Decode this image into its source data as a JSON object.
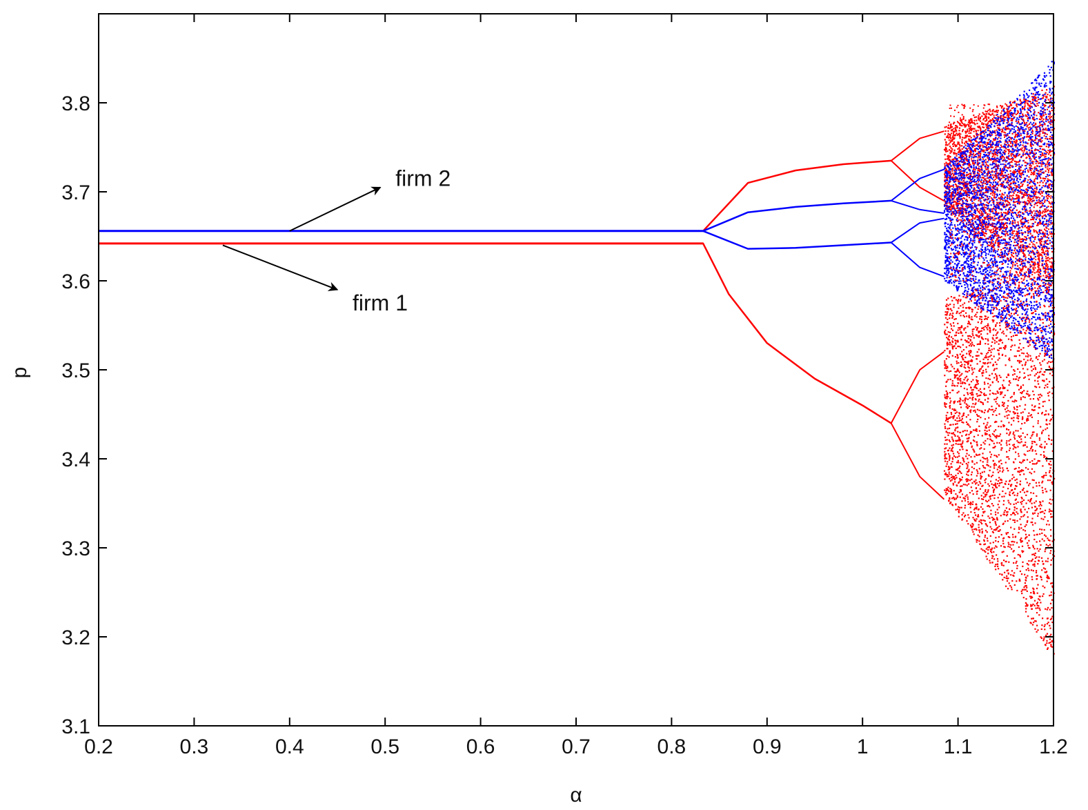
{
  "chart_data": {
    "type": "scatter",
    "title": "",
    "xlabel": "α",
    "ylabel": "p",
    "xlim": [
      0.2,
      1.2
    ],
    "ylim": [
      3.1,
      3.9
    ],
    "x_ticks": [
      "0.2",
      "0.3",
      "0.4",
      "0.5",
      "0.6",
      "0.7",
      "0.8",
      "0.9",
      "1",
      "1.1",
      "1.2"
    ],
    "y_ticks": [
      "3.1",
      "3.2",
      "3.3",
      "3.4",
      "3.5",
      "3.6",
      "3.7",
      "3.8"
    ],
    "grid": false,
    "legend": "none",
    "series": [
      {
        "name": "firm 1",
        "color": "#ff0000",
        "fixed_point": 3.642,
        "first_bifurcation_alpha": 0.833,
        "branches": [
          {
            "x": [
              0.833,
              0.88,
              0.93,
              0.98,
              1.03
            ],
            "y": [
              3.656,
              3.71,
              3.724,
              3.731,
              3.735
            ]
          },
          {
            "x": [
              0.833,
              0.86,
              0.9,
              0.95,
              1.0,
              1.03
            ],
            "y": [
              3.642,
              3.585,
              3.53,
              3.49,
              3.46,
              3.44
            ]
          }
        ],
        "period4_branches": [
          {
            "x": [
              1.03,
              1.06,
              1.085
            ],
            "y": [
              3.735,
              3.76,
              3.768
            ]
          },
          {
            "x": [
              1.03,
              1.06,
              1.085
            ],
            "y": [
              3.735,
              3.705,
              3.69
            ]
          },
          {
            "x": [
              1.03,
              1.06,
              1.085
            ],
            "y": [
              3.44,
              3.5,
              3.52
            ]
          },
          {
            "x": [
              1.03,
              1.06,
              1.085
            ],
            "y": [
              3.44,
              3.38,
              3.355
            ]
          }
        ],
        "chaotic_region": {
          "x_range": [
            1.085,
            1.2
          ],
          "y_range": [
            3.175,
            3.82
          ]
        }
      },
      {
        "name": "firm 2",
        "color": "#0000ff",
        "fixed_point": 3.656,
        "first_bifurcation_alpha": 0.833,
        "branches": [
          {
            "x": [
              0.833,
              0.88,
              0.93,
              0.98,
              1.03
            ],
            "y": [
              3.656,
              3.677,
              3.683,
              3.687,
              3.69
            ]
          },
          {
            "x": [
              0.833,
              0.88,
              0.93,
              0.98,
              1.03
            ],
            "y": [
              3.656,
              3.636,
              3.637,
              3.64,
              3.643
            ]
          }
        ],
        "period4_branches": [
          {
            "x": [
              1.03,
              1.06,
              1.085
            ],
            "y": [
              3.69,
              3.715,
              3.725
            ]
          },
          {
            "x": [
              1.03,
              1.06,
              1.085
            ],
            "y": [
              3.69,
              3.68,
              3.676
            ]
          },
          {
            "x": [
              1.03,
              1.06,
              1.085
            ],
            "y": [
              3.643,
              3.665,
              3.67
            ]
          },
          {
            "x": [
              1.03,
              1.06,
              1.085
            ],
            "y": [
              3.643,
              3.615,
              3.605
            ]
          }
        ],
        "chaotic_region": {
          "x_range": [
            1.085,
            1.2
          ],
          "y_range": [
            3.51,
            3.85
          ]
        }
      }
    ],
    "annotations": [
      {
        "text": "firm 2",
        "arrow_from": [
          0.4,
          3.656
        ],
        "arrow_to": [
          0.495,
          3.705
        ]
      },
      {
        "text": "firm 1",
        "arrow_from": [
          0.33,
          3.64
        ],
        "arrow_to": [
          0.45,
          3.59
        ]
      }
    ]
  }
}
